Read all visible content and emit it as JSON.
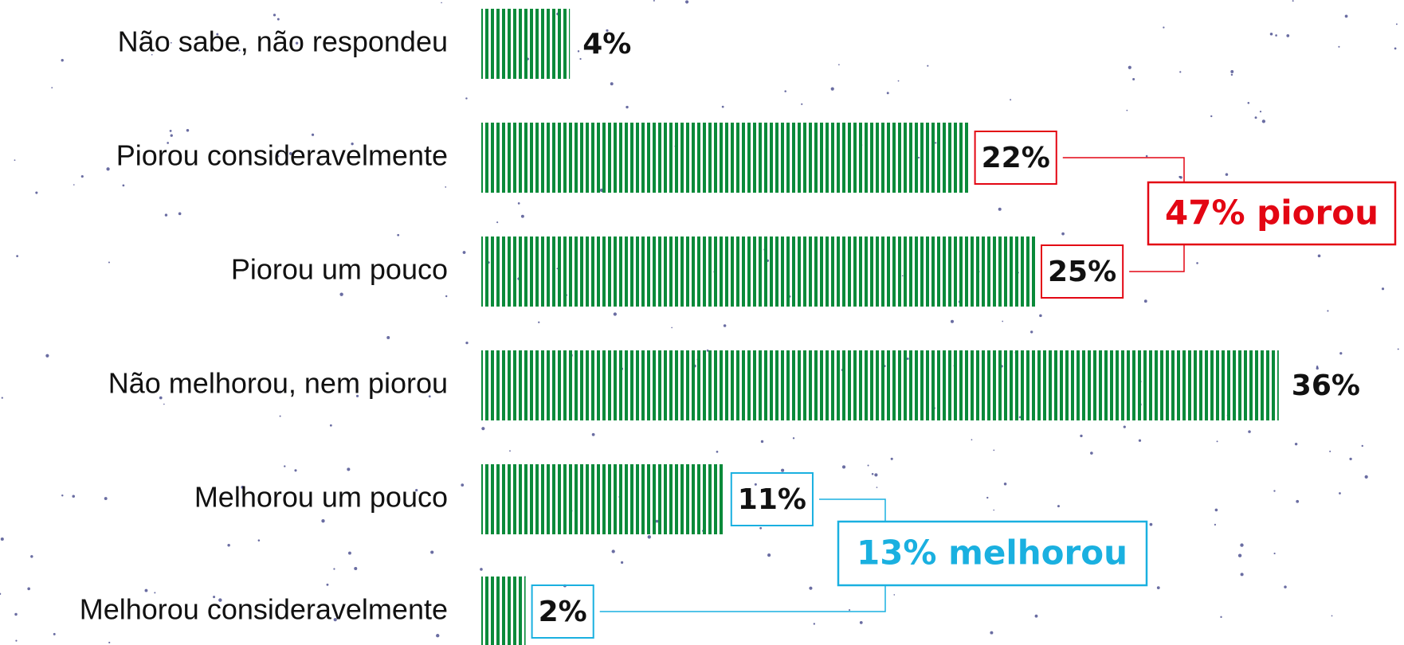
{
  "chart_data": {
    "type": "bar",
    "orientation": "horizontal",
    "categories": [
      "Não sabe, não respondeu",
      "Piorou consideravelmente",
      "Piorou um pouco",
      "Não melhorou, nem piorou",
      "Melhorou um pouco",
      "Melhorou consideravelmente"
    ],
    "values": [
      4,
      22,
      25,
      36,
      11,
      2
    ],
    "value_labels": [
      "4%",
      "22%",
      "25%",
      "36%",
      "11%",
      "2%"
    ],
    "color": "#0a8a3a",
    "annotations": [
      {
        "text": "47% piorou",
        "color": "#e30613"
      },
      {
        "text": "13% melhorou",
        "color": "#1ab0e0"
      }
    ]
  }
}
